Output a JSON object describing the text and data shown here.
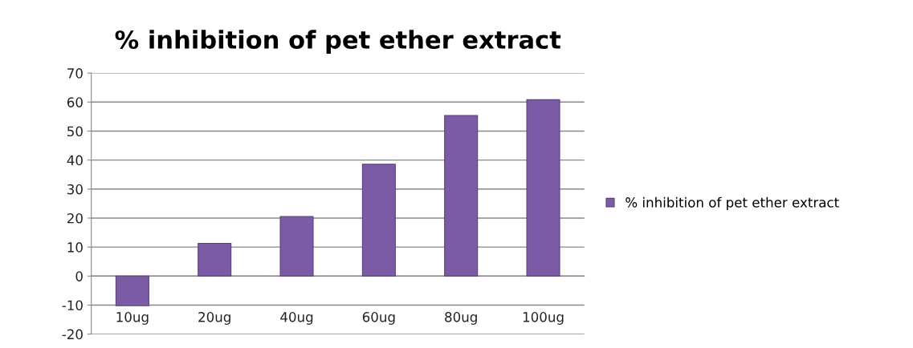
{
  "chart_data": {
    "type": "bar",
    "title": "% inhibition of pet ether extract",
    "categories": [
      "10ug",
      "20ug",
      "40ug",
      "60ug",
      "80ug",
      "100ug"
    ],
    "series": [
      {
        "name": "% inhibition of pet ether extract",
        "color": "#7b5ba6",
        "values": [
          -10.2,
          11.3,
          20.5,
          38.6,
          55.4,
          60.8
        ]
      }
    ],
    "ylim": [
      -20,
      70
    ],
    "yticks": [
      -20,
      -10,
      0,
      10,
      20,
      30,
      40,
      50,
      60,
      70
    ],
    "grid": "y",
    "legend": "right"
  }
}
